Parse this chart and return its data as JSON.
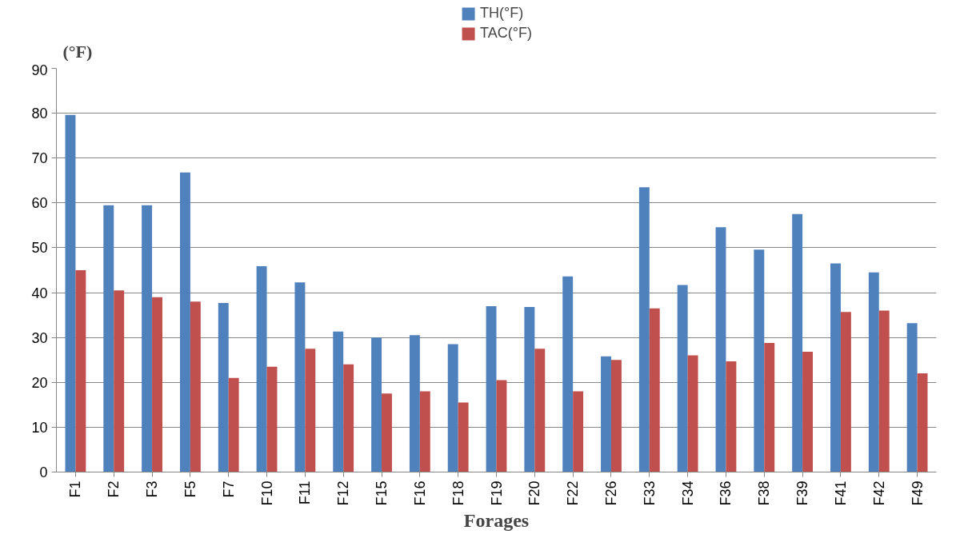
{
  "chart_data": {
    "type": "bar",
    "ylabel": "(°F)",
    "xlabel": "Forages",
    "categories": [
      "F1",
      "F2",
      "F3",
      "F5",
      "F7",
      "F10",
      "F11",
      "F12",
      "F15",
      "F16",
      "F18",
      "F19",
      "F20",
      "F22",
      "F26",
      "F33",
      "F34",
      "F36",
      "F38",
      "F39",
      "F41",
      "F42",
      "F49"
    ],
    "series": [
      {
        "name": "TH(°F)",
        "color": "#4f81bd",
        "values": [
          79.6,
          59.5,
          59.5,
          66.8,
          37.7,
          45.9,
          42.3,
          31.3,
          30,
          30.5,
          28.5,
          37,
          36.8,
          43.6,
          25.8,
          63.5,
          41.7,
          54.6,
          49.6,
          57.5,
          46.5,
          44.5,
          33.2
        ]
      },
      {
        "name": "TAC(°F)",
        "color": "#c0504d",
        "values": [
          45,
          40.5,
          39,
          38,
          21,
          23.5,
          27.5,
          24,
          17.5,
          18,
          15.5,
          20.5,
          27.5,
          18,
          25,
          36.5,
          26,
          24.7,
          28.8,
          26.8,
          35.7,
          36,
          22
        ]
      }
    ],
    "ylim": [
      0,
      90
    ],
    "yticks": [
      0,
      10,
      20,
      30,
      40,
      50,
      60,
      70,
      80,
      90
    ],
    "grid": "y",
    "legend": "top"
  }
}
